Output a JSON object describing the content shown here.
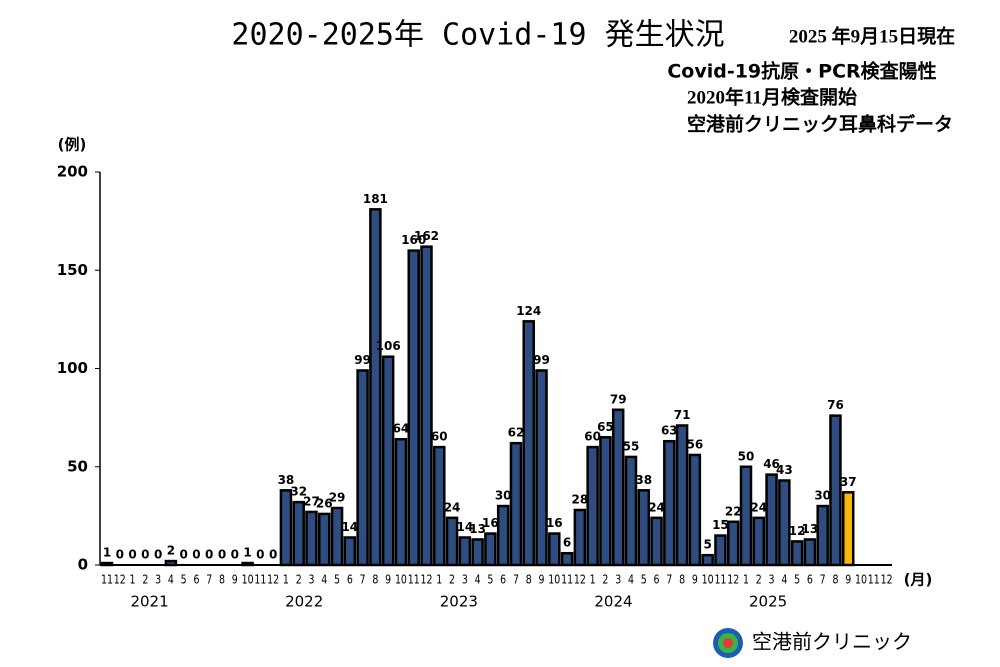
{
  "chart_data": {
    "type": "bar",
    "title": "2020-2025年 Covid-19 発生状況",
    "notes": [
      "2025 年9月15日現在",
      "Covid-19抗原・PCR検査陽性",
      "2020年11月検査開始",
      "空港前クリニック耳鼻科データ"
    ],
    "y_label": "(例)",
    "x_label": "(月)",
    "footer": "空港前クリニック",
    "categories": [
      "11",
      "12",
      "1",
      "2",
      "3",
      "4",
      "5",
      "6",
      "7",
      "8",
      "9",
      "10",
      "11",
      "12",
      "1",
      "2",
      "3",
      "4",
      "5",
      "6",
      "7",
      "8",
      "9",
      "10",
      "11",
      "12",
      "1",
      "2",
      "3",
      "4",
      "5",
      "6",
      "7",
      "8",
      "9",
      "10",
      "11",
      "12",
      "1",
      "2",
      "3",
      "4",
      "5",
      "6",
      "7",
      "8",
      "9",
      "10",
      "11",
      "12",
      "1",
      "2",
      "3",
      "4",
      "5",
      "6",
      "7",
      "8",
      "9",
      "10",
      "11",
      "12"
    ],
    "years": [
      "2021",
      "2022",
      "2023",
      "2024",
      "2025"
    ],
    "values": [
      1,
      0,
      0,
      0,
      0,
      2,
      0,
      0,
      0,
      0,
      0,
      1,
      0,
      0,
      38,
      32,
      27,
      26,
      29,
      14,
      99,
      181,
      106,
      64,
      160,
      162,
      60,
      24,
      14,
      13,
      16,
      30,
      62,
      124,
      99,
      16,
      6,
      28,
      60,
      65,
      79,
      55,
      38,
      24,
      63,
      71,
      56,
      5,
      15,
      22,
      50,
      24,
      46,
      43,
      12,
      13,
      30,
      76,
      37,
      null,
      null,
      null
    ],
    "color": "#2f4d80",
    "highlight_color": "#f6b90c",
    "highlight_index": 58,
    "ylim": [
      0,
      200
    ],
    "yticks": [
      0,
      50,
      100,
      150,
      200
    ]
  }
}
